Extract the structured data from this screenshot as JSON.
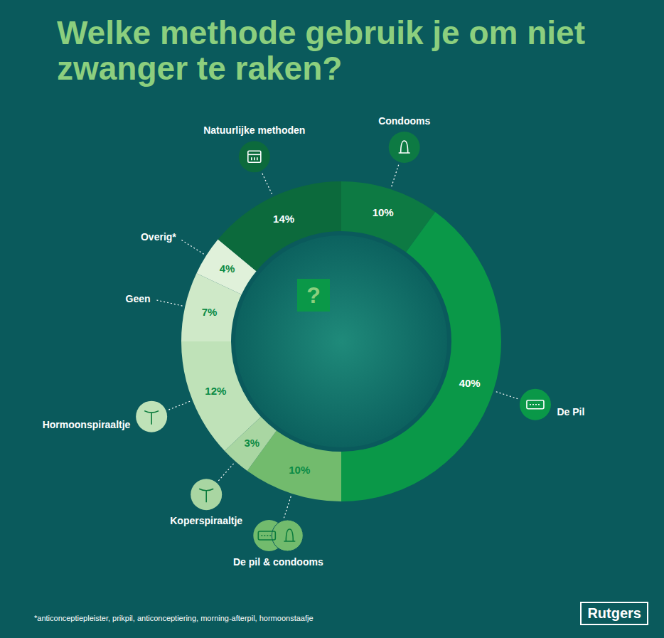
{
  "chart_data": {
    "type": "pie",
    "title": "Welke methode gebruik je om niet zwanger te raken?",
    "categories": [
      "Condooms",
      "De Pil",
      "De pil & condooms",
      "Koperspiraaltje",
      "Hormoonspiraaltje",
      "Geen",
      "Overig*",
      "Natuurlijke methoden"
    ],
    "values": [
      10,
      40,
      10,
      3,
      12,
      7,
      4,
      14
    ],
    "value_labels": [
      "10%",
      "40%",
      "10%",
      "3%",
      "12%",
      "7%",
      "4%",
      "14%"
    ],
    "colors": [
      "#0d7a43",
      "#0a9848",
      "#72bb6d",
      "#a9d6a2",
      "#bfe2b8",
      "#cfe9c8",
      "#e0f1da",
      "#0c6a3c"
    ],
    "data_labels": true,
    "footnote": "*anticonceptiepleister, prikpil, anticonceptiering, morning-afterpil, hormoonstaafje",
    "center_text": "?",
    "brand": "Rutgers"
  }
}
